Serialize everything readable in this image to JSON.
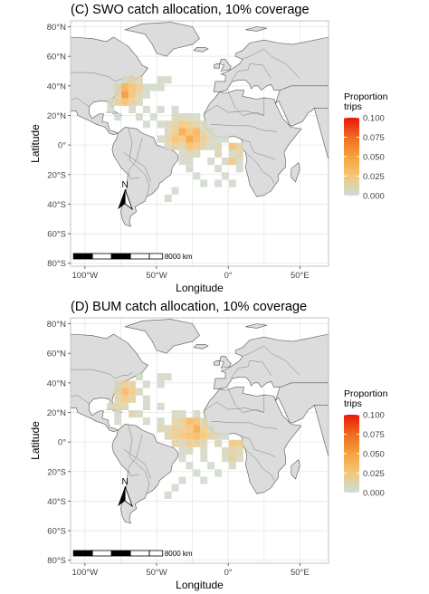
{
  "chart_data": [
    {
      "type": "heatmap",
      "title": "(C) SWO catch allocation, 10% coverage",
      "xlabel": "Longitude",
      "ylabel": "Latitude",
      "x_ticks": [
        "100°W",
        "50°W",
        "0°",
        "50°E"
      ],
      "y_ticks": [
        "80°N",
        "60°N",
        "40°N",
        "20°N",
        "0°",
        "20°S",
        "40°S",
        "60°S",
        "80°S"
      ],
      "xlim": [
        -110,
        70
      ],
      "ylim": [
        -82,
        84
      ],
      "grid": true,
      "legend": {
        "title": "Proportion\ntrips",
        "ticks": [
          "0.100",
          "0.075",
          "0.050",
          "0.025",
          "0.000"
        ],
        "range": [
          0,
          0.1
        ],
        "colors": [
          "#c8dede",
          "#f5c77a",
          "#f7a23c",
          "#f26a1f",
          "#e8180b"
        ],
        "placement": "right"
      },
      "scale_bar_label": "8000 km",
      "north_arrow": "N",
      "cells": [
        [
          -72,
          44,
          0.008
        ],
        [
          -67,
          44,
          0.015
        ],
        [
          -62,
          44,
          0.01
        ],
        [
          -47,
          44,
          0.006
        ],
        [
          -42,
          44,
          0.005
        ],
        [
          -77,
          39,
          0.012
        ],
        [
          -72,
          39,
          0.04
        ],
        [
          -67,
          39,
          0.03
        ],
        [
          -62,
          39,
          0.018
        ],
        [
          -57,
          39,
          0.006
        ],
        [
          -52,
          39,
          0.004
        ],
        [
          -47,
          39,
          0.005
        ],
        [
          -77,
          34,
          0.015
        ],
        [
          -72,
          34,
          0.055
        ],
        [
          -67,
          34,
          0.028
        ],
        [
          -62,
          34,
          0.012
        ],
        [
          -57,
          34,
          0.006
        ],
        [
          -82,
          29,
          0.006
        ],
        [
          -77,
          29,
          0.02
        ],
        [
          -72,
          29,
          0.03
        ],
        [
          -67,
          29,
          0.018
        ],
        [
          -62,
          29,
          0.008
        ],
        [
          -82,
          24,
          0.004
        ],
        [
          -67,
          24,
          0.006
        ],
        [
          -57,
          24,
          0.004
        ],
        [
          -47,
          24,
          0.004
        ],
        [
          -37,
          24,
          0.004
        ],
        [
          -77,
          19,
          0.003
        ],
        [
          -62,
          19,
          0.005
        ],
        [
          -52,
          19,
          0.004
        ],
        [
          -37,
          19,
          0.01
        ],
        [
          -32,
          19,
          0.008
        ],
        [
          -27,
          19,
          0.006
        ],
        [
          -22,
          19,
          0.004
        ],
        [
          -57,
          14,
          0.004
        ],
        [
          -47,
          14,
          0.005
        ],
        [
          -42,
          14,
          0.01
        ],
        [
          -37,
          14,
          0.015
        ],
        [
          -32,
          14,
          0.025
        ],
        [
          -27,
          14,
          0.02
        ],
        [
          -22,
          14,
          0.015
        ],
        [
          -17,
          14,
          0.008
        ],
        [
          -42,
          9,
          0.01
        ],
        [
          -37,
          9,
          0.02
        ],
        [
          -32,
          9,
          0.045
        ],
        [
          -27,
          9,
          0.03
        ],
        [
          -22,
          9,
          0.04
        ],
        [
          -17,
          9,
          0.012
        ],
        [
          -12,
          9,
          0.006
        ],
        [
          -47,
          4,
          0.006
        ],
        [
          -42,
          4,
          0.015
        ],
        [
          -37,
          4,
          0.03
        ],
        [
          -32,
          4,
          0.025
        ],
        [
          -27,
          4,
          0.05
        ],
        [
          -22,
          4,
          0.035
        ],
        [
          -17,
          4,
          0.02
        ],
        [
          -12,
          4,
          0.01
        ],
        [
          -7,
          4,
          0.006
        ],
        [
          -2,
          4,
          0.004
        ],
        [
          -42,
          -1,
          0.008
        ],
        [
          -37,
          -1,
          0.018
        ],
        [
          -32,
          -1,
          0.012
        ],
        [
          -27,
          -1,
          0.03
        ],
        [
          -22,
          -1,
          0.025
        ],
        [
          -17,
          -1,
          0.012
        ],
        [
          -12,
          -1,
          0.006
        ],
        [
          -7,
          -1,
          0.01
        ],
        [
          3,
          -1,
          0.03
        ],
        [
          8,
          -1,
          0.012
        ],
        [
          -32,
          -6,
          0.005
        ],
        [
          -27,
          -6,
          0.01
        ],
        [
          -22,
          -6,
          0.008
        ],
        [
          -7,
          -6,
          0.012
        ],
        [
          3,
          -6,
          0.006
        ],
        [
          8,
          -6,
          0.015
        ],
        [
          -32,
          -11,
          0.005
        ],
        [
          -27,
          -11,
          0.006
        ],
        [
          -12,
          -11,
          0.004
        ],
        [
          -2,
          -11,
          0.008
        ],
        [
          3,
          -11,
          0.025
        ],
        [
          8,
          -11,
          0.006
        ],
        [
          -27,
          -16,
          0.005
        ],
        [
          -7,
          -16,
          0.006
        ],
        [
          8,
          -16,
          0.004
        ],
        [
          -22,
          -21,
          0.004
        ],
        [
          -2,
          -21,
          0.004
        ],
        [
          -17,
          -26,
          0.004
        ],
        [
          -7,
          -26,
          0.004
        ],
        [
          3,
          -26,
          0.005
        ],
        [
          -37,
          -31,
          0.004
        ],
        [
          -42,
          -36,
          0.005
        ]
      ]
    },
    {
      "type": "heatmap",
      "title": "(D) BUM catch allocation, 10% coverage",
      "xlabel": "Longitude",
      "ylabel": "Latitude",
      "x_ticks": [
        "100°W",
        "50°W",
        "0°",
        "50°E"
      ],
      "y_ticks": [
        "80°N",
        "60°N",
        "40°N",
        "20°N",
        "0°",
        "20°S",
        "40°S",
        "60°S",
        "80°S"
      ],
      "xlim": [
        -110,
        70
      ],
      "ylim": [
        -82,
        84
      ],
      "grid": true,
      "legend": {
        "title": "Proportion\ntrips",
        "ticks": [
          "0.100",
          "0.075",
          "0.050",
          "0.025",
          "0.000"
        ],
        "range": [
          0,
          0.1
        ],
        "colors": [
          "#c8dede",
          "#f5c77a",
          "#f7a23c",
          "#f26a1f",
          "#e8180b"
        ],
        "placement": "right"
      },
      "scale_bar_label": "8000 km",
      "north_arrow": "N",
      "cells": [
        [
          -62,
          44,
          0.006
        ],
        [
          -47,
          44,
          0.006
        ],
        [
          -42,
          44,
          0.005
        ],
        [
          -77,
          39,
          0.01
        ],
        [
          -72,
          39,
          0.02
        ],
        [
          -67,
          39,
          0.015
        ],
        [
          -57,
          39,
          0.005
        ],
        [
          -47,
          39,
          0.004
        ],
        [
          -77,
          34,
          0.015
        ],
        [
          -72,
          34,
          0.035
        ],
        [
          -67,
          34,
          0.022
        ],
        [
          -62,
          34,
          0.008
        ],
        [
          -77,
          29,
          0.012
        ],
        [
          -72,
          29,
          0.025
        ],
        [
          -67,
          29,
          0.015
        ],
        [
          -57,
          29,
          0.005
        ],
        [
          -82,
          24,
          0.008
        ],
        [
          -77,
          24,
          0.015
        ],
        [
          -72,
          24,
          0.01
        ],
        [
          -57,
          24,
          0.005
        ],
        [
          -47,
          24,
          0.004
        ],
        [
          -77,
          19,
          0.006
        ],
        [
          -67,
          19,
          0.012
        ],
        [
          -62,
          19,
          0.006
        ],
        [
          -37,
          19,
          0.008
        ],
        [
          -32,
          19,
          0.006
        ],
        [
          -22,
          19,
          0.006
        ],
        [
          -77,
          14,
          0.004
        ],
        [
          -57,
          14,
          0.005
        ],
        [
          -47,
          14,
          0.006
        ],
        [
          -37,
          14,
          0.012
        ],
        [
          -32,
          14,
          0.02
        ],
        [
          -27,
          14,
          0.035
        ],
        [
          -22,
          14,
          0.03
        ],
        [
          -17,
          14,
          0.012
        ],
        [
          -47,
          9,
          0.01
        ],
        [
          -42,
          9,
          0.01
        ],
        [
          -37,
          9,
          0.02
        ],
        [
          -32,
          9,
          0.018
        ],
        [
          -27,
          9,
          0.025
        ],
        [
          -22,
          9,
          0.045
        ],
        [
          -17,
          9,
          0.02
        ],
        [
          -12,
          9,
          0.01
        ],
        [
          -42,
          4,
          0.012
        ],
        [
          -37,
          4,
          0.02
        ],
        [
          -32,
          4,
          0.025
        ],
        [
          -27,
          4,
          0.03
        ],
        [
          -22,
          4,
          0.035
        ],
        [
          -17,
          4,
          0.025
        ],
        [
          -12,
          4,
          0.015
        ],
        [
          -7,
          4,
          0.008
        ],
        [
          -2,
          4,
          0.005
        ],
        [
          -37,
          -1,
          0.012
        ],
        [
          -32,
          -1,
          0.01
        ],
        [
          -27,
          -1,
          0.02
        ],
        [
          -22,
          -1,
          0.018
        ],
        [
          -17,
          -1,
          0.01
        ],
        [
          -7,
          -1,
          0.01
        ],
        [
          3,
          -1,
          0.025
        ],
        [
          8,
          -1,
          0.02
        ],
        [
          -32,
          -6,
          0.006
        ],
        [
          -27,
          -6,
          0.008
        ],
        [
          -17,
          -6,
          0.006
        ],
        [
          -2,
          -6,
          0.01
        ],
        [
          3,
          -6,
          0.015
        ],
        [
          8,
          -6,
          0.012
        ],
        [
          -32,
          -11,
          0.004
        ],
        [
          -17,
          -11,
          0.005
        ],
        [
          -2,
          -11,
          0.006
        ],
        [
          3,
          -11,
          0.02
        ],
        [
          8,
          -11,
          0.008
        ],
        [
          -27,
          -16,
          0.005
        ],
        [
          -12,
          -16,
          0.004
        ],
        [
          3,
          -16,
          0.006
        ],
        [
          -22,
          -21,
          0.004
        ],
        [
          -7,
          -21,
          0.004
        ],
        [
          -32,
          -26,
          0.004
        ],
        [
          -17,
          -26,
          0.004
        ],
        [
          -37,
          -31,
          0.004
        ],
        [
          -42,
          -36,
          0.005
        ]
      ]
    }
  ]
}
